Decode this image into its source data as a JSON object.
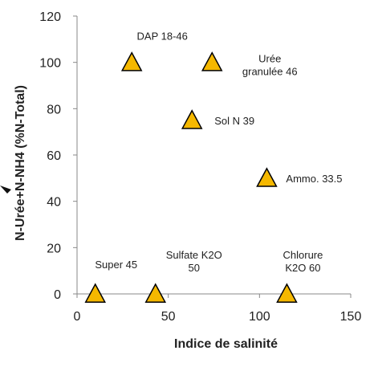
{
  "chart_data": {
    "type": "scatter",
    "title": "",
    "xlabel": "Indice de salinité",
    "ylabel": "N-Urée+N-NH4 (%N-Total)",
    "xlim": [
      0,
      150
    ],
    "ylim": [
      0,
      120
    ],
    "xticks": [
      "0",
      "50",
      "100",
      "150"
    ],
    "yticks": [
      "0",
      "20",
      "40",
      "60",
      "80",
      "100",
      "120"
    ],
    "grid": false,
    "legend": "none",
    "marker": "triangle",
    "marker_color": "#F5B800",
    "marker_edge": "#000000",
    "points": [
      {
        "x": 30,
        "y": 100,
        "label": [
          "DAP 18-46"
        ]
      },
      {
        "x": 74,
        "y": 100,
        "label": [
          "Urée",
          "granulée 46"
        ]
      },
      {
        "x": 63,
        "y": 75,
        "label": [
          "Sol N 39"
        ]
      },
      {
        "x": 104,
        "y": 50,
        "label": [
          "Ammo. 33.5"
        ]
      },
      {
        "x": 10,
        "y": 0,
        "label": [
          "Super 45"
        ]
      },
      {
        "x": 43,
        "y": 0,
        "label": [
          "Sulfate K2O",
          "50"
        ]
      },
      {
        "x": 115,
        "y": 0,
        "label": [
          "Chlorure",
          "K2O 60"
        ]
      }
    ]
  }
}
